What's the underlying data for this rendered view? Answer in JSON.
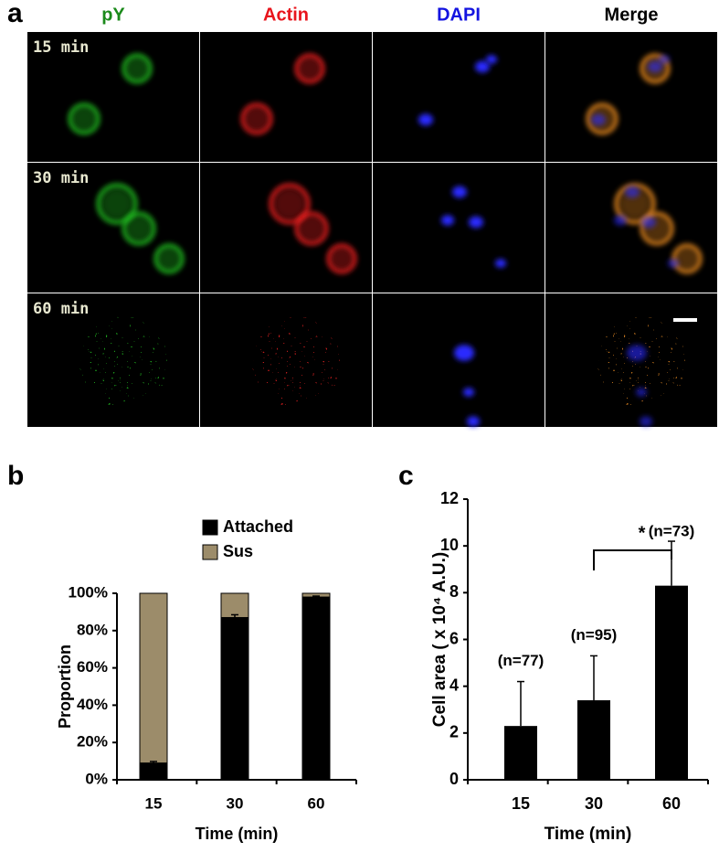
{
  "panel_a": {
    "label": "a",
    "columns": [
      "pY",
      "Actin",
      "DAPI",
      "Merge"
    ],
    "column_colors": [
      "#1a8a1a",
      "#e8141c",
      "#1414e0",
      "#000000"
    ],
    "rows": [
      "15 min",
      "30 min",
      "60 min"
    ]
  },
  "chart_data": [
    {
      "type": "bar",
      "label": "b",
      "stacked": true,
      "categories": [
        "15",
        "30",
        "60"
      ],
      "series": [
        {
          "name": "Attached",
          "color": "#000000",
          "values": [
            9,
            87,
            98
          ],
          "errors": [
            0.8,
            1.5,
            0.5
          ]
        },
        {
          "name": "Sus",
          "color": "#9c8c6a",
          "values": [
            91,
            13,
            2
          ]
        }
      ],
      "ylim": [
        0,
        100
      ],
      "yticks": [
        {
          "value": 0,
          "label": "0%"
        },
        {
          "value": 20,
          "label": "20%"
        },
        {
          "value": 40,
          "label": "40%"
        },
        {
          "value": 60,
          "label": "60%"
        },
        {
          "value": 80,
          "label": "80%"
        },
        {
          "value": 100,
          "label": "100%"
        }
      ],
      "xlabel": "Time (min)",
      "ylabel": "Proportion",
      "legend": "top-right",
      "grid": false
    },
    {
      "type": "bar",
      "label": "c",
      "categories": [
        "15",
        "30",
        "60"
      ],
      "values": [
        2.3,
        3.4,
        8.3
      ],
      "errors": [
        1.9,
        1.9,
        1.9
      ],
      "color": "#000000",
      "annotations": [
        "(n=77)",
        "(n=95)",
        "(n=73)"
      ],
      "significance_label": "*",
      "ylim": [
        0,
        12
      ],
      "yticks": [
        0,
        2,
        4,
        6,
        8,
        10,
        12
      ],
      "xlabel": "Time (min)",
      "ylabel": "Cell area ( x 10⁴ A.U.)",
      "grid": false
    }
  ]
}
